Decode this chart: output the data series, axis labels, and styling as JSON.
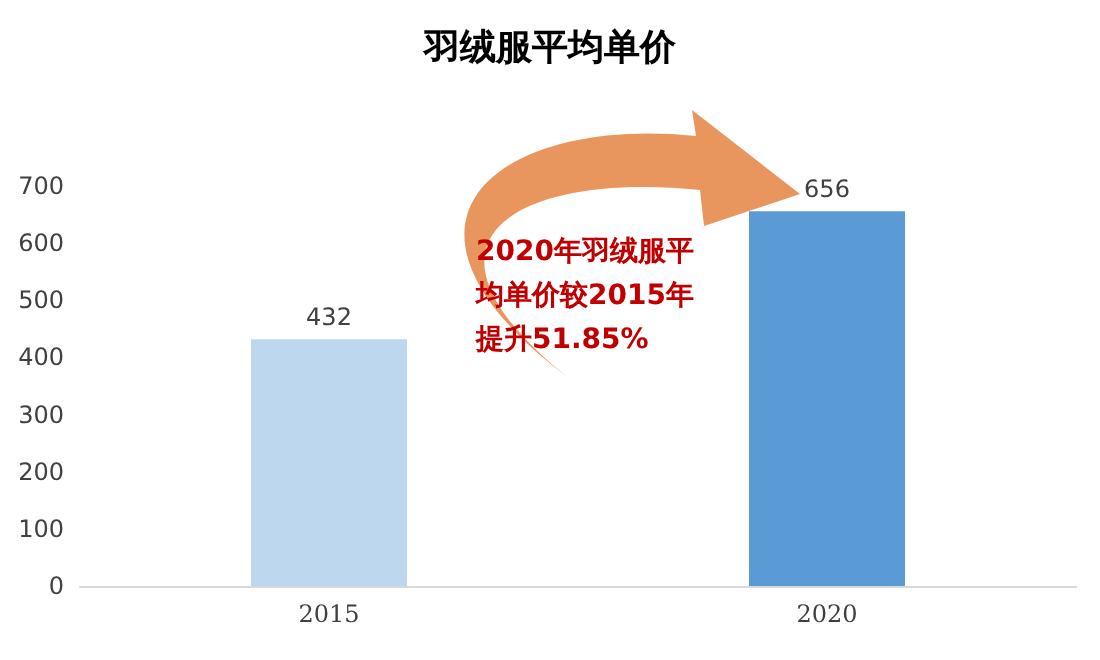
{
  "chart_data": {
    "type": "bar",
    "title": "羽绒服平均单价",
    "categories": [
      "2015",
      "2020"
    ],
    "values": [
      432,
      656
    ],
    "colors": [
      "#bdd7ee",
      "#5b9bd5"
    ],
    "ylim": [
      0,
      700
    ],
    "yticks": [
      0,
      100,
      200,
      300,
      400,
      500,
      600,
      700
    ],
    "data_labels": true,
    "annotations": [
      "2020年羽绒服平均单价较2015年提升51.85%"
    ]
  }
}
